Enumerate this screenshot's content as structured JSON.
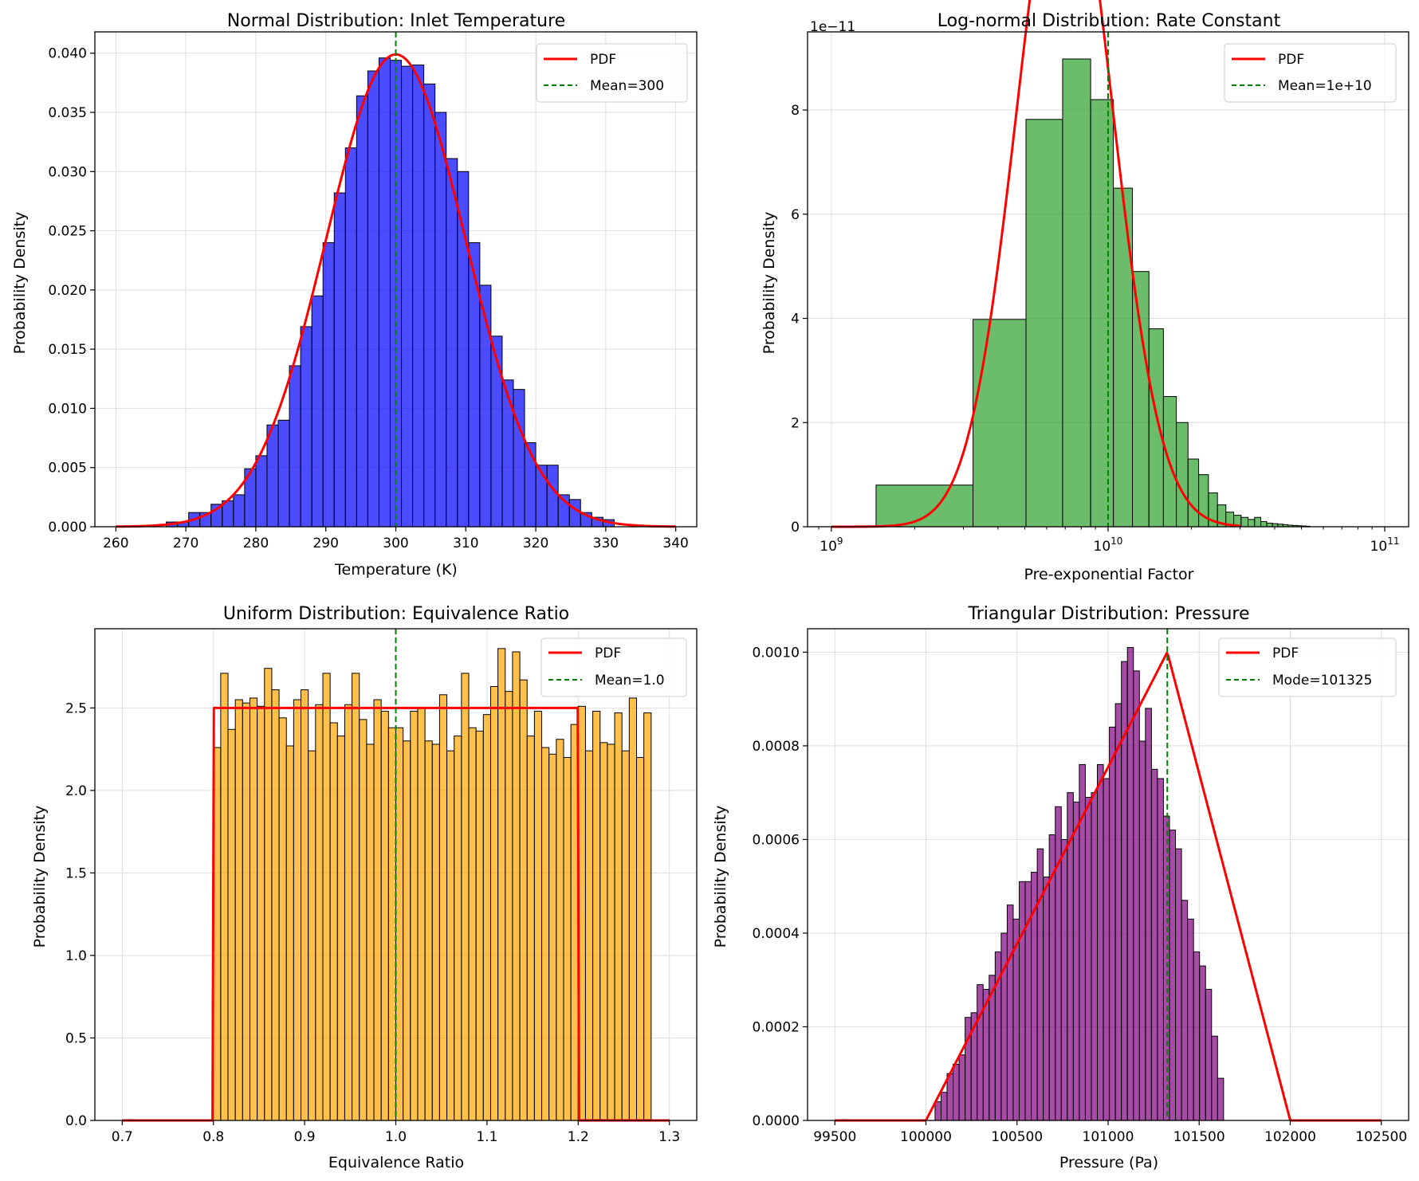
{
  "figure": {
    "colors": {
      "pdf_line": "#ff0000",
      "mean_line": "#008000",
      "edge": "#000000",
      "grid": "#dedede"
    }
  },
  "chart_data": [
    {
      "id": "normal",
      "type": "bar",
      "title": "Normal Distribution: Inlet Temperature",
      "xlabel": "Temperature (K)",
      "ylabel": "Probability Density",
      "xscale": "linear",
      "xlim": [
        257,
        343
      ],
      "ylim": [
        0,
        0.0418
      ],
      "xticks": [
        260,
        270,
        280,
        290,
        300,
        310,
        320,
        330,
        340
      ],
      "xtick_labels": [
        "260",
        "270",
        "280",
        "290",
        "300",
        "310",
        "320",
        "330",
        "340"
      ],
      "yticks": [
        0,
        0.005,
        0.01,
        0.015,
        0.02,
        0.025,
        0.03,
        0.035,
        0.04
      ],
      "ytick_labels": [
        "0.000",
        "0.005",
        "0.010",
        "0.015",
        "0.020",
        "0.025",
        "0.030",
        "0.035",
        "0.040"
      ],
      "bar_color": "#0000ff",
      "bins": [
        [
          267.2,
          268.8,
          0.0004
        ],
        [
          268.8,
          270.4,
          0.0004
        ],
        [
          270.4,
          272.0,
          0.0012
        ],
        [
          272.0,
          273.6,
          0.0012
        ],
        [
          273.6,
          275.2,
          0.0019
        ],
        [
          275.2,
          276.8,
          0.0022
        ],
        [
          276.8,
          278.4,
          0.0027
        ],
        [
          278.4,
          280.0,
          0.0049
        ],
        [
          280.0,
          281.6,
          0.006
        ],
        [
          281.6,
          283.2,
          0.0086
        ],
        [
          283.2,
          284.8,
          0.009
        ],
        [
          284.8,
          286.4,
          0.0136
        ],
        [
          286.4,
          288.0,
          0.0169
        ],
        [
          288.0,
          289.6,
          0.0195
        ],
        [
          289.6,
          291.2,
          0.024
        ],
        [
          291.2,
          292.8,
          0.0282
        ],
        [
          292.8,
          294.4,
          0.032
        ],
        [
          294.4,
          296.0,
          0.0364
        ],
        [
          296.0,
          297.6,
          0.0385
        ],
        [
          297.6,
          299.2,
          0.0396
        ],
        [
          299.2,
          300.8,
          0.0394
        ],
        [
          300.8,
          302.4,
          0.0389
        ],
        [
          302.4,
          304.0,
          0.039
        ],
        [
          304.0,
          305.6,
          0.0374
        ],
        [
          305.6,
          307.2,
          0.035
        ],
        [
          307.2,
          308.8,
          0.0311
        ],
        [
          308.8,
          310.4,
          0.03
        ],
        [
          310.4,
          312.0,
          0.024
        ],
        [
          312.0,
          313.6,
          0.0204
        ],
        [
          313.6,
          315.2,
          0.0161
        ],
        [
          315.2,
          316.8,
          0.0124
        ],
        [
          316.8,
          318.4,
          0.0116
        ],
        [
          318.4,
          320.0,
          0.0071
        ],
        [
          320.0,
          321.6,
          0.0052
        ],
        [
          321.6,
          323.2,
          0.0052
        ],
        [
          323.2,
          324.8,
          0.0027
        ],
        [
          324.8,
          326.4,
          0.0023
        ],
        [
          326.4,
          328.0,
          0.0012
        ],
        [
          328.0,
          329.6,
          0.0008
        ],
        [
          329.6,
          331.2,
          0.0006
        ]
      ],
      "pdf": {
        "label": "PDF",
        "kind": "normal",
        "mean": 300,
        "std": 10,
        "range": [
          260,
          340
        ]
      },
      "vline": {
        "label": "Mean=300",
        "x": 300
      },
      "legend_location": "top-right"
    },
    {
      "id": "lognormal",
      "type": "bar",
      "title": "Log-normal Distribution: Rate Constant",
      "xlabel": "Pre-exponential Factor",
      "ylabel": "Probability Density",
      "xscale": "log",
      "xlim": [
        820000000,
        122000000000
      ],
      "ylim": [
        0,
        9.5e-11
      ],
      "offset_text": "1e−11",
      "xticks": [
        1000000000,
        10000000000,
        100000000000
      ],
      "xtick_labels": [
        [
          "10",
          "9"
        ],
        [
          "10",
          "10"
        ],
        [
          "10",
          "11"
        ]
      ],
      "yticks": [
        0,
        2e-11,
        4e-11,
        6e-11,
        8e-11
      ],
      "ytick_labels": [
        "0",
        "2",
        "4",
        "6",
        "8"
      ],
      "bar_color": "#2ca02c",
      "bins": [
        [
          1450000000,
          3250000000,
          8e-12
        ],
        [
          3250000000,
          5050000000,
          3.98e-11
        ],
        [
          5050000000,
          6850000000,
          7.82e-11
        ],
        [
          6850000000,
          8650000000,
          8.98e-11
        ],
        [
          8650000000,
          10450000000,
          8.2e-11
        ],
        [
          10450000000,
          12250000000,
          6.5e-11
        ],
        [
          12250000000,
          14050000000,
          4.9e-11
        ],
        [
          14050000000,
          15850000000,
          3.8e-11
        ],
        [
          15850000000,
          17650000000,
          2.5e-11
        ],
        [
          17650000000,
          19450000000,
          2e-11
        ],
        [
          19450000000,
          21250000000,
          1.3e-11
        ],
        [
          21250000000,
          23050000000,
          1e-11
        ],
        [
          23050000000,
          24850000000,
          6.5e-12
        ],
        [
          24850000000,
          26650000000,
          4.2e-12
        ],
        [
          26650000000,
          28450000000,
          2.8e-12
        ],
        [
          28450000000,
          30250000000,
          2.2e-12
        ],
        [
          30250000000,
          32050000000,
          1.8e-12
        ],
        [
          32050000000,
          33850000000,
          1.4e-12
        ],
        [
          33850000000,
          35650000000,
          1.8e-12
        ],
        [
          35650000000,
          37450000000,
          1e-12
        ],
        [
          37450000000,
          39250000000,
          7e-13
        ],
        [
          39250000000,
          41050000000,
          6e-13
        ],
        [
          41050000000,
          42850000000,
          5e-13
        ],
        [
          42850000000,
          44650000000,
          4e-13
        ],
        [
          44650000000,
          46450000000,
          3e-13
        ],
        [
          46450000000,
          48250000000,
          2.5e-13
        ],
        [
          48250000000,
          50050000000,
          2e-13
        ],
        [
          50050000000,
          51850000000,
          1.5e-13
        ],
        [
          51850000000,
          53650000000,
          1e-13
        ]
      ],
      "pdf": {
        "label": "PDF",
        "kind": "lognormal",
        "mu": 22.8257,
        "sigma": 0.4,
        "range": [
          1000000000,
          30000000000
        ]
      },
      "vline": {
        "label": "Mean=1e+10",
        "x": 10000000000
      },
      "legend_location": "top-right"
    },
    {
      "id": "uniform",
      "type": "bar",
      "title": "Uniform Distribution: Equivalence Ratio",
      "xlabel": "Equivalence Ratio",
      "ylabel": "Probability Density",
      "xscale": "linear",
      "xlim": [
        0.67,
        1.33
      ],
      "ylim": [
        0,
        2.98
      ],
      "xticks": [
        0.7,
        0.8,
        0.9,
        1.0,
        1.1,
        1.2,
        1.3
      ],
      "xtick_labels": [
        "0.7",
        "0.8",
        "0.9",
        "1.0",
        "1.1",
        "1.2",
        "1.3"
      ],
      "yticks": [
        0,
        0.5,
        1.0,
        1.5,
        2.0,
        2.5
      ],
      "ytick_labels": [
        "0.0",
        "0.5",
        "1.0",
        "1.5",
        "2.0",
        "2.5"
      ],
      "bar_color": "#ffa500",
      "bin_start": 0.8,
      "bin_width": 0.008,
      "bin_values": [
        2.26,
        2.71,
        2.37,
        2.55,
        2.53,
        2.56,
        2.51,
        2.74,
        2.61,
        2.44,
        2.27,
        2.55,
        2.61,
        2.24,
        2.52,
        2.71,
        2.41,
        2.33,
        2.52,
        2.71,
        2.43,
        2.28,
        2.55,
        2.48,
        2.38,
        2.38,
        2.3,
        2.48,
        2.5,
        2.3,
        2.28,
        2.58,
        2.24,
        2.33,
        2.71,
        2.38,
        2.36,
        2.46,
        2.63,
        2.86,
        2.6,
        2.84,
        2.67,
        2.33,
        2.48,
        2.26,
        2.22,
        2.31,
        2.2,
        2.4,
        2.51,
        2.24,
        2.48,
        2.29,
        2.28,
        2.47,
        2.24,
        2.56,
        2.2,
        2.47
      ],
      "pdf": {
        "label": "PDF",
        "kind": "uniform",
        "low": 0.8,
        "high": 1.2,
        "range": [
          0.7,
          1.3
        ]
      },
      "vline": {
        "label": "Mean=1.0",
        "x": 1.0
      },
      "legend_location": "top-right"
    },
    {
      "id": "triangular",
      "type": "bar",
      "title": "Triangular Distribution: Pressure",
      "xlabel": "Pressure (Pa)",
      "ylabel": "Probability Density",
      "xscale": "linear",
      "xlim": [
        99350,
        102650
      ],
      "ylim": [
        0,
        0.00105
      ],
      "xticks": [
        99500,
        100000,
        100500,
        101000,
        101500,
        102000,
        102500
      ],
      "xtick_labels": [
        "99500",
        "100000",
        "100500",
        "101000",
        "101500",
        "102000",
        "102500"
      ],
      "yticks": [
        0,
        0.0002,
        0.0004,
        0.0006,
        0.0008,
        0.001
      ],
      "ytick_labels": [
        "0.0000",
        "0.0002",
        "0.0004",
        "0.0006",
        "0.0008",
        "0.0010"
      ],
      "bar_color": "#800080",
      "bin_start": 100050,
      "bin_width": 33,
      "bin_values": [
        4e-05,
        6e-05,
        0.0001,
        0.00012,
        0.00014,
        0.00022,
        0.00023,
        0.00029,
        0.00028,
        0.00031,
        0.00036,
        0.0004,
        0.00046,
        0.00043,
        0.00051,
        0.00051,
        0.00053,
        0.00058,
        0.00052,
        0.00061,
        0.00067,
        0.0006,
        0.0007,
        0.00068,
        0.00076,
        0.00069,
        0.0007,
        0.00076,
        0.00073,
        0.00084,
        0.00089,
        0.00098,
        0.00101,
        0.00096,
        0.00081,
        0.00088,
        0.00075,
        0.00073,
        0.00065,
        0.00062,
        0.00058,
        0.00047,
        0.00043,
        0.00036,
        0.00033,
        0.00028,
        0.00018,
        9e-05
      ],
      "pdf": {
        "label": "PDF",
        "kind": "triangular",
        "low": 100000,
        "mode": 101325,
        "high": 102000,
        "range": [
          99500,
          102500
        ]
      },
      "vline": {
        "label": "Mode=101325",
        "x": 101325
      },
      "legend_location": "top-right"
    }
  ]
}
